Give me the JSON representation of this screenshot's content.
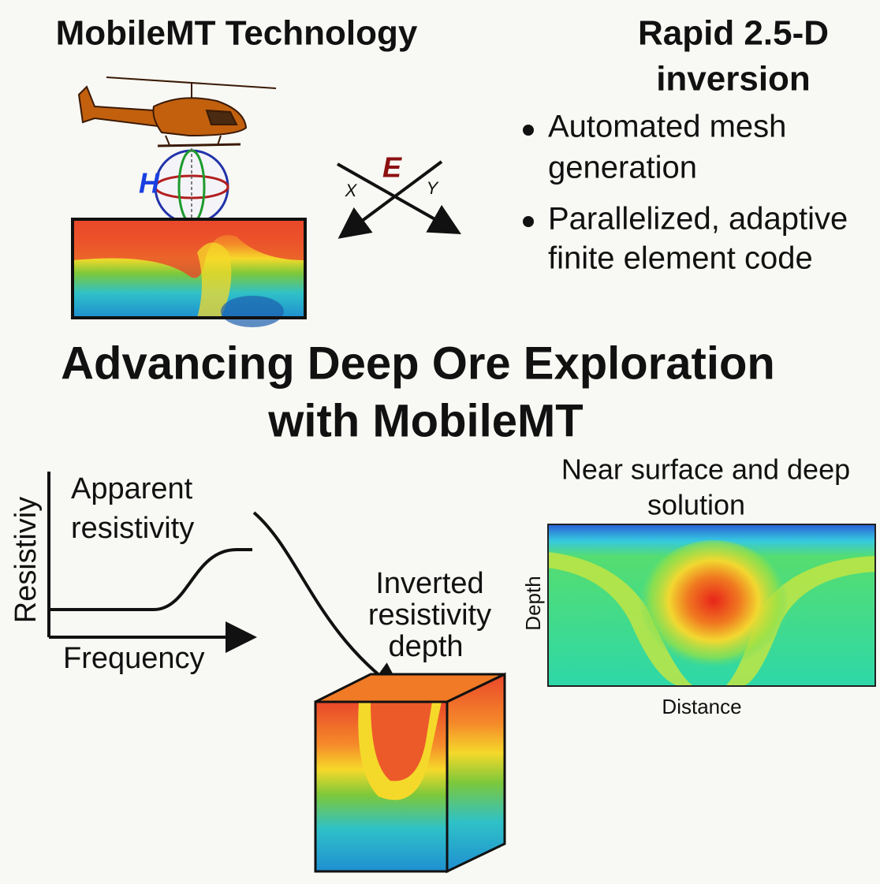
{
  "header": {
    "left_title": "MobileMT Technology",
    "right_title": [
      "Rapid 2.5-D",
      "inversion"
    ]
  },
  "bullets": [
    [
      "Automated mesh",
      "generation"
    ],
    [
      "Parallelized, adaptive",
      "finite element code"
    ]
  ],
  "field_labels": {
    "h": "H",
    "e": "E",
    "x": "X",
    "y": "Y"
  },
  "title": [
    "Advancing Deep Ore Exploration",
    "with MobileMT"
  ],
  "graph": {
    "y_axis": "Resistiviy",
    "curve": [
      "Apparent",
      "resistivity"
    ],
    "x_axis": "Frequency"
  },
  "cube_label": [
    "Inverted",
    "resistivity",
    "depth"
  ],
  "section": {
    "title": [
      "Near surface and deep",
      "solution"
    ],
    "y_axis": "Depth",
    "x_axis": "Distance"
  }
}
